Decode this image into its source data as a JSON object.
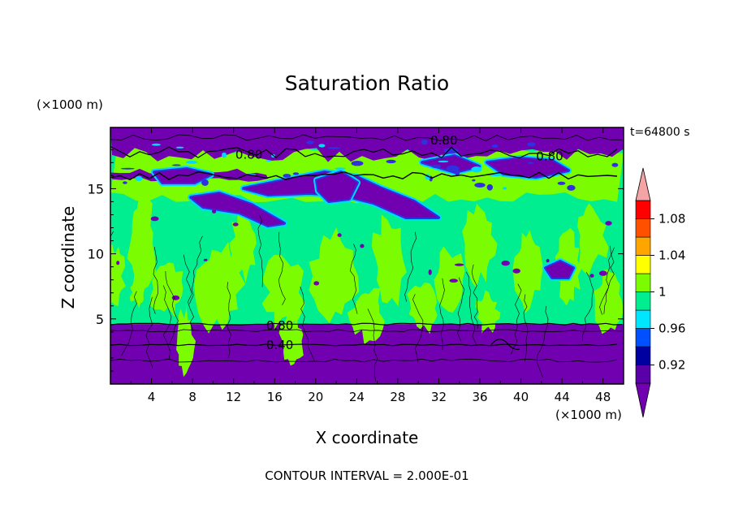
{
  "chart_data": {
    "type": "heatmap",
    "title": "Saturation Ratio",
    "xlabel": "X coordinate",
    "ylabel": "Z coordinate",
    "x_unit": "(×1000 m)",
    "y_unit": "(×1000 m)",
    "time_label": "t=64800 s",
    "footer": "CONTOUR INTERVAL = 2.000E-01",
    "xlim": [
      0,
      50
    ],
    "ylim": [
      0,
      19.7
    ],
    "x_ticks": [
      4,
      8,
      12,
      16,
      20,
      24,
      28,
      32,
      36,
      40,
      44,
      48
    ],
    "y_ticks": [
      5,
      10,
      15
    ],
    "contour_labels": [
      {
        "text": "0.80",
        "x": 13.5,
        "y": 17.6
      },
      {
        "text": "0.80",
        "x": 32.5,
        "y": 18.7
      },
      {
        "text": "0.80",
        "x": 42.8,
        "y": 17.5
      },
      {
        "text": "0.80",
        "x": 16.5,
        "y": 4.5
      },
      {
        "text": "0.40",
        "x": 16.5,
        "y": 3.0
      }
    ],
    "colorbar": {
      "tick_labels": [
        "0.92",
        "0.96",
        "1",
        "1.04",
        "1.08"
      ],
      "tick_values": [
        0.92,
        0.96,
        1.0,
        1.04,
        1.08
      ],
      "bins": [
        0.9,
        0.92,
        0.94,
        0.96,
        0.98,
        1.0,
        1.02,
        1.04,
        1.06,
        1.08,
        1.1
      ],
      "colors": [
        "#5a00a8",
        "#0000a0",
        "#0050ff",
        "#00e6ff",
        "#00ee90",
        "#7cfc00",
        "#ffff00",
        "#ffa500",
        "#ff5000",
        "#ff0000"
      ],
      "under_color": "#7000b0",
      "over_color": "#f4a4a4"
    },
    "regions": [
      {
        "level": "dry_lower",
        "color": "#7000b0",
        "y_range": [
          0,
          4.6
        ]
      },
      {
        "level": "moist_mid",
        "color": "#00ee90",
        "y_range": [
          4.6,
          14.5
        ]
      },
      {
        "level": "supersat_patch",
        "color": "#7cfc00",
        "y_range": [
          4.6,
          13.5
        ]
      },
      {
        "level": "transition_upper",
        "color": "#7cfc00",
        "y_range": [
          14.5,
          18.2
        ]
      },
      {
        "level": "dry_upper",
        "color": "#7000b0",
        "y_range": [
          17.0,
          19.7
        ]
      }
    ],
    "grid": false
  }
}
